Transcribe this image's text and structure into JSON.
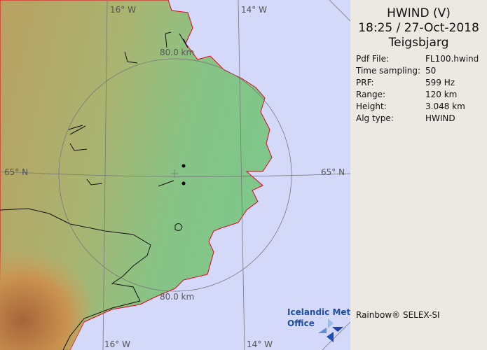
{
  "map": {
    "background_color": "#d4d9fa",
    "land_colors": [
      "#7fc78a",
      "#c9a462",
      "#b8733a"
    ],
    "coastline_color": "#e8001c",
    "grid_labels": {
      "lon_top_left": "16° W",
      "lon_top_right": "14° W",
      "lon_bottom_left": "16° W",
      "lon_bottom_right": "14° W",
      "lat_left": "65° N",
      "lat_right": "65° N",
      "range_top": "80.0 km",
      "range_bottom": "80.0 km"
    },
    "logo": {
      "line1": "Icelandic Met",
      "line2": "Office"
    }
  },
  "panel": {
    "product": "HWIND (V)",
    "datetime": "18:25 / 27-Oct-2018",
    "site": "Teigsbjarg",
    "fields": [
      {
        "label": "Pdf File:",
        "value": "FL100.hwind"
      },
      {
        "label": "Time sampling:",
        "value": "50"
      },
      {
        "label": "PRF:",
        "value": "599 Hz"
      },
      {
        "label": "Range:",
        "value": "120 km"
      },
      {
        "label": "Height:",
        "value": "3.048 km"
      },
      {
        "label": "Alg type:",
        "value": "HWIND"
      }
    ],
    "credit": "Rainbow® SELEX-SI"
  }
}
